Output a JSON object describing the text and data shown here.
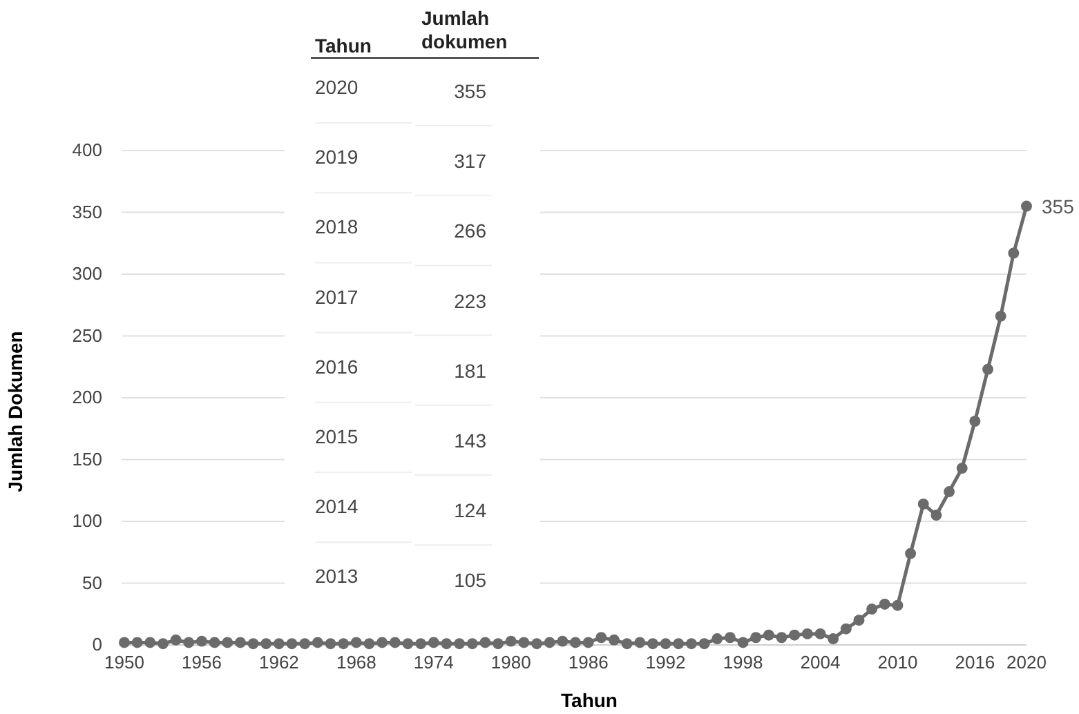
{
  "chart_data": {
    "type": "line",
    "xlabel": "Tahun",
    "ylabel": "Jumlah Dokumen",
    "x": [
      1950,
      1951,
      1952,
      1953,
      1954,
      1955,
      1956,
      1957,
      1958,
      1959,
      1960,
      1961,
      1962,
      1963,
      1964,
      1965,
      1966,
      1967,
      1968,
      1969,
      1970,
      1971,
      1972,
      1973,
      1974,
      1975,
      1976,
      1977,
      1978,
      1979,
      1980,
      1981,
      1982,
      1983,
      1984,
      1985,
      1986,
      1987,
      1988,
      1989,
      1990,
      1991,
      1992,
      1993,
      1994,
      1995,
      1996,
      1997,
      1998,
      1999,
      2000,
      2001,
      2002,
      2003,
      2004,
      2005,
      2006,
      2007,
      2008,
      2009,
      2010,
      2011,
      2012,
      2013,
      2014,
      2015,
      2016,
      2017,
      2018,
      2019,
      2020
    ],
    "series": [
      {
        "color": "#6b6b6b",
        "values": [
          2,
          2,
          2,
          1,
          4,
          2,
          3,
          2,
          2,
          2,
          1,
          1,
          1,
          1,
          1,
          2,
          1,
          1,
          2,
          1,
          2,
          2,
          1,
          1,
          2,
          1,
          1,
          1,
          2,
          1,
          3,
          2,
          1,
          2,
          3,
          2,
          2,
          6,
          4,
          1,
          2,
          1,
          1,
          1,
          1,
          1,
          5,
          6,
          2,
          6,
          8,
          6,
          8,
          9,
          9,
          5,
          13,
          20,
          29,
          33,
          32,
          74,
          114,
          105,
          124,
          143,
          181,
          223,
          266,
          317,
          355
        ],
        "value_labels": [
          null,
          null,
          null,
          null,
          null,
          null,
          null,
          null,
          null,
          null,
          null,
          null,
          null,
          null,
          null,
          null,
          null,
          null,
          null,
          null,
          null,
          null,
          null,
          null,
          null,
          null,
          null,
          null,
          null,
          null,
          null,
          null,
          null,
          null,
          null,
          null,
          null,
          null,
          null,
          null,
          null,
          null,
          null,
          null,
          null,
          null,
          null,
          null,
          null,
          null,
          null,
          null,
          null,
          null,
          null,
          null,
          null,
          null,
          null,
          null,
          null,
          null,
          null,
          null,
          null,
          null,
          null,
          null,
          null,
          null,
          "355"
        ]
      }
    ],
    "xlim": [
      1950,
      2020
    ],
    "xticks": [
      1950,
      1956,
      1962,
      1968,
      1974,
      1980,
      1986,
      1992,
      1998,
      2004,
      2010,
      2016,
      2020
    ],
    "ylim": [
      0,
      400
    ],
    "yticks": [
      0,
      50,
      100,
      150,
      200,
      250,
      300,
      350,
      400
    ],
    "grid": "y",
    "marker": "circle",
    "line_style": "solid",
    "annotations": [
      "Tahun",
      "Jumlah dokumen",
      "2020",
      "355",
      "2019",
      "317",
      "2018",
      "266",
      "2017",
      "223",
      "2016",
      "181",
      "2015",
      "143",
      "2014",
      "124",
      "2013",
      "105"
    ]
  }
}
